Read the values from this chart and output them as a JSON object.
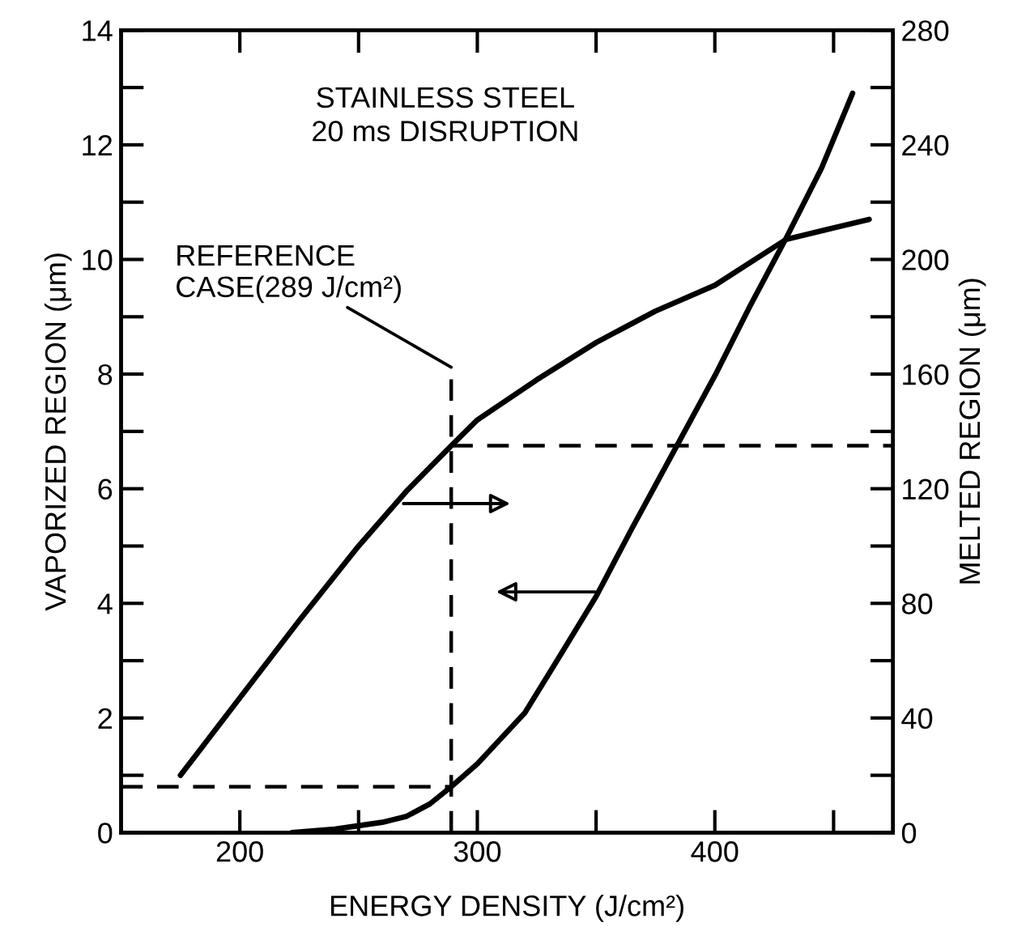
{
  "chart_data": {
    "type": "line",
    "xlabel": "ENERGY DENSITY (J/cm²)",
    "ylabel": "VAPORIZED REGION (μm)",
    "y2label": "MELTED REGION (μm)",
    "annotations": [
      "STAINLESS STEEL\n20 ms DISRUPTION"
    ],
    "series": [
      {
        "color": "#000000",
        "axis": "y2",
        "x": [
          175,
          200,
          225,
          250,
          270,
          289,
          300,
          325,
          350,
          375,
          400,
          430,
          450,
          465
        ],
        "values": [
          20,
          47,
          74,
          100,
          119,
          135,
          144,
          158,
          171,
          182,
          191,
          207,
          211,
          214
        ]
      },
      {
        "color": "#000000",
        "x": [
          222,
          240,
          250,
          260,
          270,
          280,
          289,
          300,
          320,
          335,
          350,
          365,
          384,
          400,
          415,
          430,
          445,
          458
        ],
        "values": [
          0,
          0.06,
          0.12,
          0.18,
          0.28,
          0.5,
          0.8,
          1.2,
          2.09,
          3.1,
          4.12,
          5.3,
          6.75,
          7.97,
          9.2,
          10.37,
          11.6,
          12.9
        ]
      }
    ],
    "xlim": [
      150,
      475
    ],
    "xticks": [
      200,
      {
        "value": 250,
        "label": null
      },
      300,
      {
        "value": 350,
        "label": null
      },
      400,
      {
        "value": 450,
        "label": null
      }
    ],
    "ylim": [
      0,
      14
    ],
    "yticks": [
      0,
      {
        "value": 1,
        "label": null
      },
      2,
      {
        "value": 3,
        "label": null
      },
      4,
      {
        "value": 5,
        "label": null
      },
      6,
      {
        "value": 7,
        "label": null
      },
      8,
      {
        "value": 9,
        "label": null
      },
      10,
      {
        "value": 11,
        "label": null
      },
      12,
      {
        "value": 13,
        "label": null
      },
      14
    ],
    "y2lim": [
      0,
      280
    ],
    "y2ticks": [
      0,
      {
        "value": 20,
        "label": null
      },
      40,
      {
        "value": 60,
        "label": null
      },
      80,
      {
        "value": 100,
        "label": null
      },
      120,
      {
        "value": 140,
        "label": null
      },
      160,
      {
        "value": 180,
        "label": null
      },
      200,
      {
        "value": 220,
        "label": null
      },
      240,
      {
        "value": 260,
        "label": null
      },
      280
    ],
    "ref_lines": [
      {
        "axis": "x",
        "value": 289,
        "label": "REFERENCE\nCASE(289 J/cm²)",
        "line_style": "dashed",
        "color": "#000000"
      },
      {
        "axis": "y",
        "value": 0.8,
        "line_style": "dashed",
        "color": "#000000"
      },
      {
        "axis": "y2",
        "value": 135,
        "line_style": "dashed",
        "color": "#000000"
      }
    ],
    "grid": false,
    "legend": false,
    "marker": "none",
    "line_style": "solid"
  }
}
